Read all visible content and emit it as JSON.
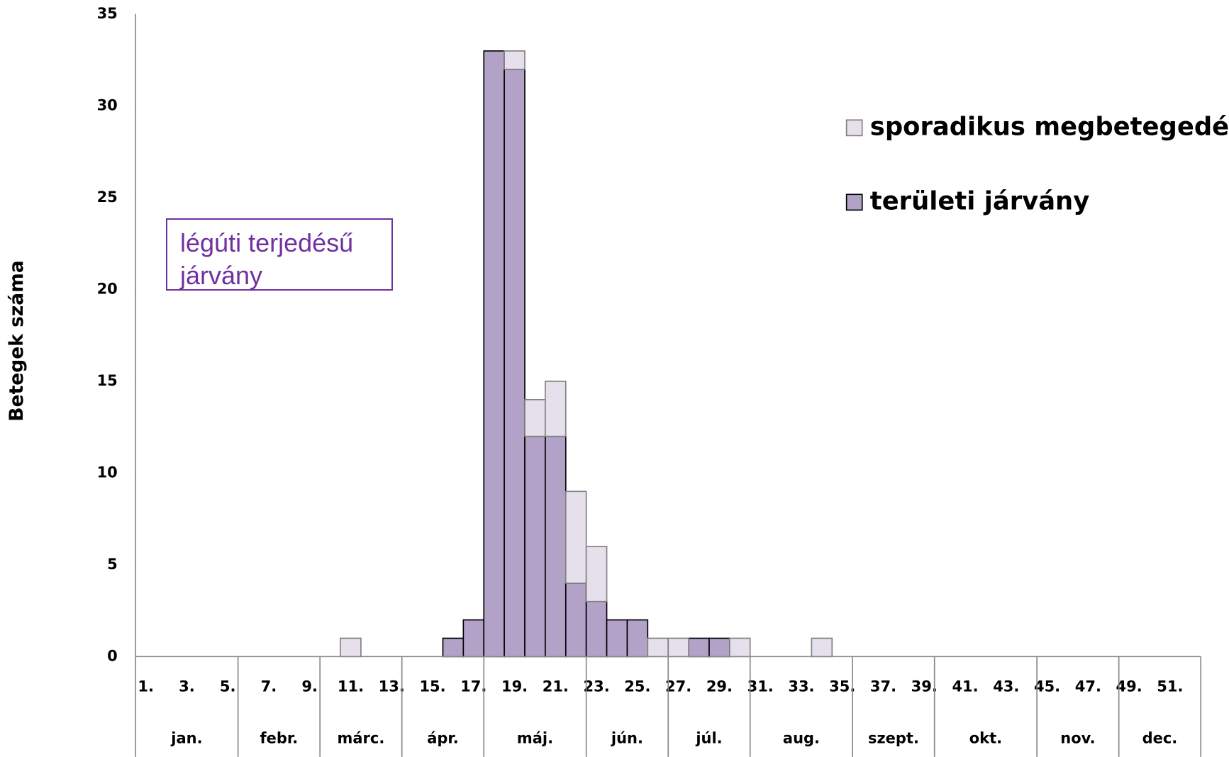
{
  "chart_data": {
    "type": "stacked_bar",
    "y_label": "Betegek száma",
    "annotation": "légúti terjedésű járvány",
    "categories": [
      "1.",
      null,
      "3.",
      null,
      "5.",
      null,
      "7.",
      null,
      "9.",
      null,
      "11.",
      null,
      "13.",
      null,
      "15.",
      null,
      "17.",
      null,
      "19.",
      null,
      "21.",
      null,
      "23.",
      null,
      "25.",
      null,
      "27.",
      null,
      "29.",
      null,
      "31.",
      null,
      "33.",
      null,
      "35.",
      null,
      "37.",
      null,
      "39.",
      null,
      "41.",
      null,
      "43.",
      null,
      "45.",
      null,
      "47.",
      null,
      "49.",
      null,
      "51.",
      null
    ],
    "months": [
      {
        "label": "jan.",
        "weeks": 5
      },
      {
        "label": "febr.",
        "weeks": 4
      },
      {
        "label": "márc.",
        "weeks": 4
      },
      {
        "label": "ápr.",
        "weeks": 4
      },
      {
        "label": "máj.",
        "weeks": 5
      },
      {
        "label": "jún.",
        "weeks": 4
      },
      {
        "label": "júl.",
        "weeks": 4
      },
      {
        "label": "aug.",
        "weeks": 5
      },
      {
        "label": "szept.",
        "weeks": 4
      },
      {
        "label": "okt.",
        "weeks": 5
      },
      {
        "label": "nov.",
        "weeks": 4
      },
      {
        "label": "dec.",
        "weeks": 4
      }
    ],
    "series": [
      {
        "name": "sporadikus megbetegedések",
        "color": "#e6e0ec",
        "stroke": "#808080",
        "values": [
          0,
          0,
          0,
          0,
          0,
          0,
          0,
          0,
          0,
          0,
          1,
          0,
          0,
          0,
          0,
          0,
          0,
          0,
          1,
          2,
          3,
          5,
          3,
          0,
          0,
          1,
          1,
          0,
          0,
          1,
          0,
          0,
          0,
          1,
          0,
          0,
          0,
          0,
          0,
          0,
          0,
          0,
          0,
          0,
          0,
          0,
          0,
          0,
          0,
          0,
          0,
          0
        ]
      },
      {
        "name": "területi járvány",
        "color": "#b3a2c7",
        "stroke": "#000000",
        "values": [
          0,
          0,
          0,
          0,
          0,
          0,
          0,
          0,
          0,
          0,
          0,
          0,
          0,
          0,
          0,
          1,
          2,
          33,
          32,
          12,
          12,
          4,
          3,
          2,
          2,
          0,
          0,
          1,
          1,
          0,
          0,
          0,
          0,
          0,
          0,
          0,
          0,
          0,
          0,
          0,
          0,
          0,
          0,
          0,
          0,
          0,
          0,
          0,
          0,
          0,
          0,
          0
        ]
      }
    ],
    "ylim": [
      0,
      35
    ],
    "yticks": [
      0,
      5,
      10,
      15,
      20,
      25,
      30,
      35
    ],
    "legend": "top-right"
  }
}
